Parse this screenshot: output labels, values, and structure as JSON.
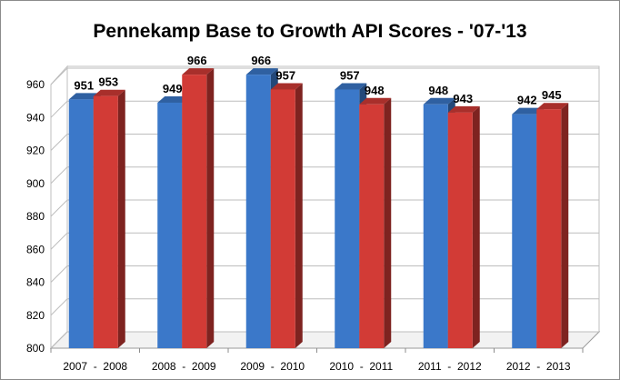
{
  "chart_data": {
    "type": "bar",
    "title": "Pennekamp Base to Growth API Scores - '07-'13",
    "categories": [
      "2007  -  2008",
      "2008  -  2009",
      "2009  -  2010",
      "2010  -  2011",
      "2011  -  2012",
      "2012  -  2013"
    ],
    "series": [
      {
        "values": [
          951,
          949,
          966,
          957,
          948,
          942
        ],
        "color": "#3b78c9"
      },
      {
        "values": [
          953,
          966,
          957,
          948,
          943,
          945
        ],
        "color": "#d23b36"
      }
    ],
    "ylim": [
      800,
      960
    ],
    "yticks": [
      800,
      820,
      840,
      860,
      880,
      900,
      920,
      940,
      960
    ],
    "grid": true,
    "legend": "none",
    "style": "3d-column"
  }
}
